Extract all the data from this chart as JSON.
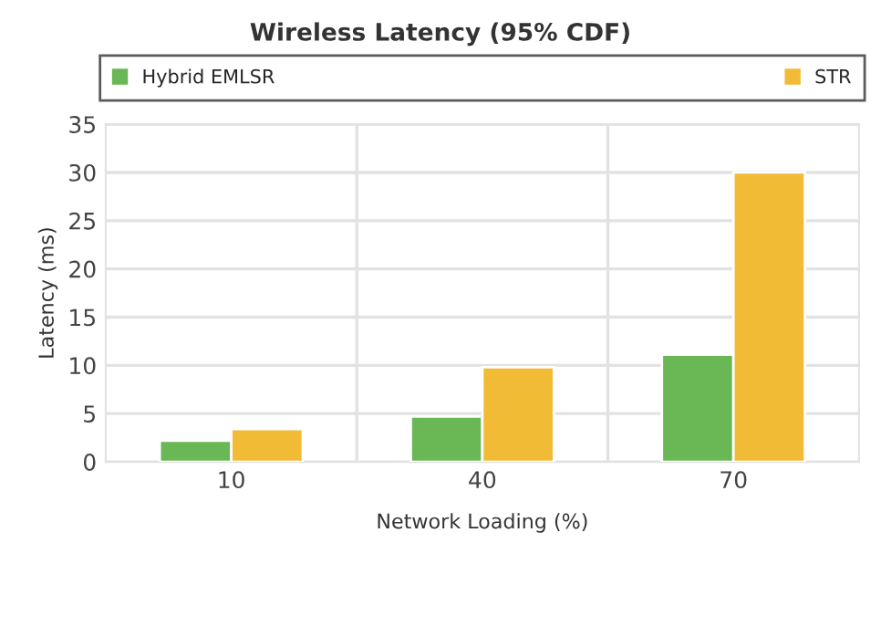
{
  "chart_data": {
    "type": "bar",
    "title": "Wireless Latency (95% CDF)",
    "xlabel": "Network Loading (%)",
    "ylabel": "Latency (ms)",
    "categories": [
      "10",
      "40",
      "70"
    ],
    "series": [
      {
        "name": "Hybrid EMLSR",
        "color": "#6ab755",
        "values": [
          2.2,
          4.7,
          11.1
        ]
      },
      {
        "name": "STR",
        "color": "#f2bb36",
        "values": [
          3.4,
          9.8,
          30
        ]
      }
    ],
    "ylim": [
      0,
      35
    ],
    "yticks": [
      0,
      5,
      10,
      15,
      20,
      25,
      30,
      35
    ],
    "grid": true,
    "legend": "top"
  }
}
